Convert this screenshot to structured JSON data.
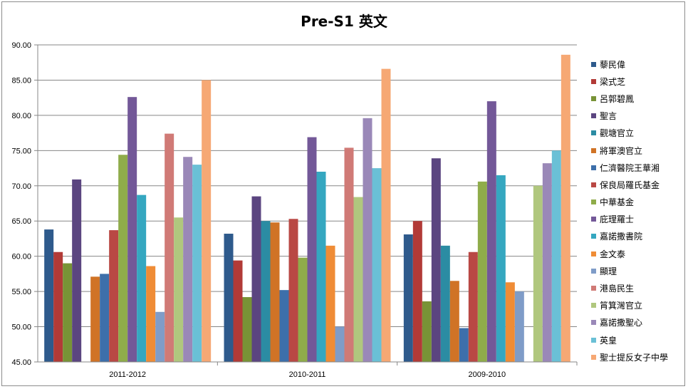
{
  "chart_data": {
    "type": "bar",
    "title": "Pre-S1 英文",
    "xlabel": "",
    "ylabel": "",
    "ylim": [
      45,
      90
    ],
    "yticks": [
      "45.00",
      "50.00",
      "55.00",
      "60.00",
      "65.00",
      "70.00",
      "75.00",
      "80.00",
      "85.00",
      "90.00"
    ],
    "grid": true,
    "legend_position": "right",
    "categories": [
      "2011-2012",
      "2010-2011",
      "2009-2010"
    ],
    "series": [
      {
        "name": "藜民偉",
        "color": "#2e5a8c",
        "values": [
          63.8,
          63.2,
          63.1
        ]
      },
      {
        "name": "梁式芝",
        "color": "#b23a37",
        "values": [
          60.6,
          59.4,
          65.0
        ]
      },
      {
        "name": "呂郭碧鳳",
        "color": "#789336",
        "values": [
          59.0,
          54.2,
          53.6
        ]
      },
      {
        "name": "聖言",
        "color": "#5b4580",
        "values": [
          70.9,
          68.5,
          73.9
        ]
      },
      {
        "name": "觀塘官立",
        "color": "#2b8ca3",
        "values": [
          null,
          65.0,
          61.5
        ]
      },
      {
        "name": "將軍澳官立",
        "color": "#d07326",
        "values": [
          57.1,
          64.8,
          56.5
        ]
      },
      {
        "name": "仁濟醫院王華湘",
        "color": "#3d6faa",
        "values": [
          57.5,
          55.2,
          49.8
        ]
      },
      {
        "name": "保良局羅氏基金",
        "color": "#b94844",
        "values": [
          63.7,
          65.3,
          60.6
        ]
      },
      {
        "name": "中華基金",
        "color": "#8fac4a",
        "values": [
          74.4,
          59.8,
          70.6
        ]
      },
      {
        "name": "庇理羅士",
        "color": "#735898",
        "values": [
          82.6,
          76.9,
          82.0
        ]
      },
      {
        "name": "嘉諾撒書院",
        "color": "#35a7c0",
        "values": [
          68.7,
          72.0,
          71.5
        ]
      },
      {
        "name": "金文泰",
        "color": "#ef8c36",
        "values": [
          58.6,
          61.5,
          56.3
        ]
      },
      {
        "name": "顯理",
        "color": "#7f9cc8",
        "values": [
          52.1,
          50.0,
          55.0
        ]
      },
      {
        "name": "港島民生",
        "color": "#d07a76",
        "values": [
          77.4,
          75.4,
          null
        ]
      },
      {
        "name": "筲箕灣官立",
        "color": "#b0c77e",
        "values": [
          65.5,
          68.4,
          70.0
        ]
      },
      {
        "name": "嘉諾撒聖心",
        "color": "#9a88b8",
        "values": [
          74.1,
          79.6,
          73.2
        ]
      },
      {
        "name": "英皇",
        "color": "#6ac0d6",
        "values": [
          73.0,
          72.5,
          75.0
        ]
      },
      {
        "name": "聖士提反女子中學",
        "color": "#f6a874",
        "values": [
          85.0,
          86.6,
          88.6
        ]
      }
    ]
  }
}
